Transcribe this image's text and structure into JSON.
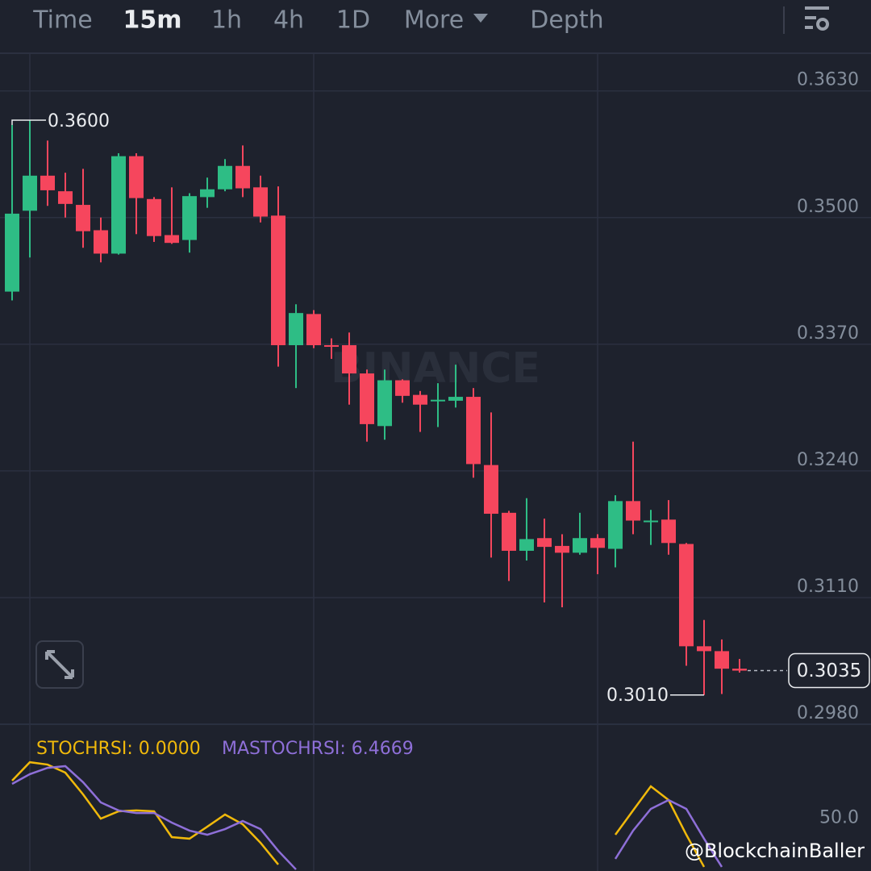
{
  "toolbar": {
    "tabs": [
      "Time",
      "15m",
      "1h",
      "4h",
      "1D",
      "More",
      "Depth"
    ],
    "active": 1
  },
  "watermark": "BINANCE",
  "credit": "@BlockchainBaller",
  "chart_data": [
    {
      "type": "candlestick",
      "open": [
        0.3424,
        0.3507,
        0.3543,
        0.3527,
        0.3513,
        0.3487,
        0.3463,
        0.3563,
        0.3519,
        0.3482,
        0.3477,
        0.3521,
        0.3529,
        0.3553,
        0.3531,
        0.3502,
        0.3369,
        0.3401,
        0.3369,
        0.3369,
        0.334,
        0.3286,
        0.3333,
        0.3318,
        0.3312,
        0.3312,
        0.3316,
        0.3246,
        0.3197,
        0.3158,
        0.3171,
        0.3163,
        0.3156,
        0.3171,
        0.316,
        0.3209,
        0.3188,
        0.319,
        0.3165,
        0.306,
        0.3055,
        0.3037
      ],
      "high": [
        0.3595,
        0.36,
        0.3579,
        0.3546,
        0.355,
        0.35,
        0.3566,
        0.3566,
        0.3521,
        0.3531,
        0.3525,
        0.3541,
        0.356,
        0.3574,
        0.3543,
        0.3532,
        0.3411,
        0.3405,
        0.3376,
        0.3382,
        0.3344,
        0.3344,
        0.3334,
        0.3322,
        0.333,
        0.3349,
        0.3325,
        0.33,
        0.3199,
        0.3212,
        0.3191,
        0.3175,
        0.3197,
        0.3175,
        0.3215,
        0.327,
        0.32,
        0.321,
        0.3166,
        0.3087,
        0.3067,
        0.3047
      ],
      "low": [
        0.3415,
        0.3459,
        0.3512,
        0.35,
        0.3469,
        0.3454,
        0.3462,
        0.3483,
        0.3475,
        0.3473,
        0.3464,
        0.351,
        0.3527,
        0.3521,
        0.3495,
        0.3347,
        0.3325,
        0.3366,
        0.3355,
        0.3308,
        0.327,
        0.3272,
        0.331,
        0.328,
        0.3285,
        0.3305,
        0.3233,
        0.3151,
        0.3127,
        0.3148,
        0.3105,
        0.31,
        0.3154,
        0.3134,
        0.3141,
        0.3175,
        0.3164,
        0.3154,
        0.304,
        0.301,
        0.3011,
        0.3033
      ],
      "close": [
        0.3504,
        0.3543,
        0.3528,
        0.3514,
        0.3486,
        0.3463,
        0.3563,
        0.352,
        0.3481,
        0.3474,
        0.3522,
        0.3529,
        0.3553,
        0.353,
        0.3501,
        0.3369,
        0.3402,
        0.3369,
        0.3368,
        0.334,
        0.3288,
        0.3333,
        0.3317,
        0.3308,
        0.3313,
        0.3316,
        0.3247,
        0.3196,
        0.3158,
        0.317,
        0.3162,
        0.3156,
        0.3171,
        0.3161,
        0.3209,
        0.3189,
        0.3189,
        0.3166,
        0.306,
        0.3055,
        0.3037,
        0.3035
      ],
      "up_color": "#2ebd85",
      "down_color": "#f6465d",
      "ylim": [
        0.298,
        0.3667
      ],
      "yticks": [
        {
          "value": 0.363,
          "label": "0.3630"
        },
        {
          "value": 0.35,
          "label": "0.3500"
        },
        {
          "value": 0.337,
          "label": "0.3370"
        },
        {
          "value": 0.324,
          "label": "0.3240"
        },
        {
          "value": 0.311,
          "label": "0.3110"
        },
        {
          "value": 0.298,
          "label": "0.2980"
        }
      ],
      "grid": true,
      "high_label": {
        "value": 0.36,
        "label": "0.3600"
      },
      "low_label": {
        "value": 0.301,
        "label": "0.3010"
      },
      "last_price": {
        "value": 0.3035,
        "label": "0.3035"
      }
    },
    {
      "type": "line",
      "series": [
        {
          "name": "STOCHRSI: 0.0000",
          "color": "#f0b90b",
          "values": [
            84.0,
            97.1,
            95.4,
            89.7,
            74.3,
            57.1,
            62.3,
            62.9,
            62.3,
            44.0,
            42.9,
            51.4,
            60.0,
            53.1,
            40.0,
            24.6,
            null,
            null,
            null,
            null,
            null,
            null,
            null,
            null,
            null,
            null,
            null,
            null,
            null,
            null,
            null,
            null,
            null,
            null,
            45.7,
            62.9,
            80.0,
            70.3,
            45.7,
            22.9,
            null,
            null
          ]
        },
        {
          "name": "MASTOCHRSI: 6.4669",
          "color": "#8e6fd8",
          "values": [
            81.7,
            88.6,
            93.1,
            94.3,
            82.9,
            68.6,
            62.9,
            61.1,
            61.1,
            54.3,
            48.6,
            45.7,
            49.7,
            55.4,
            49.7,
            34.3,
            21.1,
            null,
            null,
            null,
            null,
            null,
            null,
            null,
            null,
            null,
            null,
            null,
            null,
            null,
            null,
            null,
            null,
            null,
            28.6,
            48.6,
            64.0,
            70.3,
            64.0,
            42.9,
            22.9,
            null
          ]
        }
      ],
      "ylim": [
        20,
        124
      ],
      "yticks": [
        {
          "value": 50,
          "label": "50.0"
        }
      ]
    }
  ]
}
